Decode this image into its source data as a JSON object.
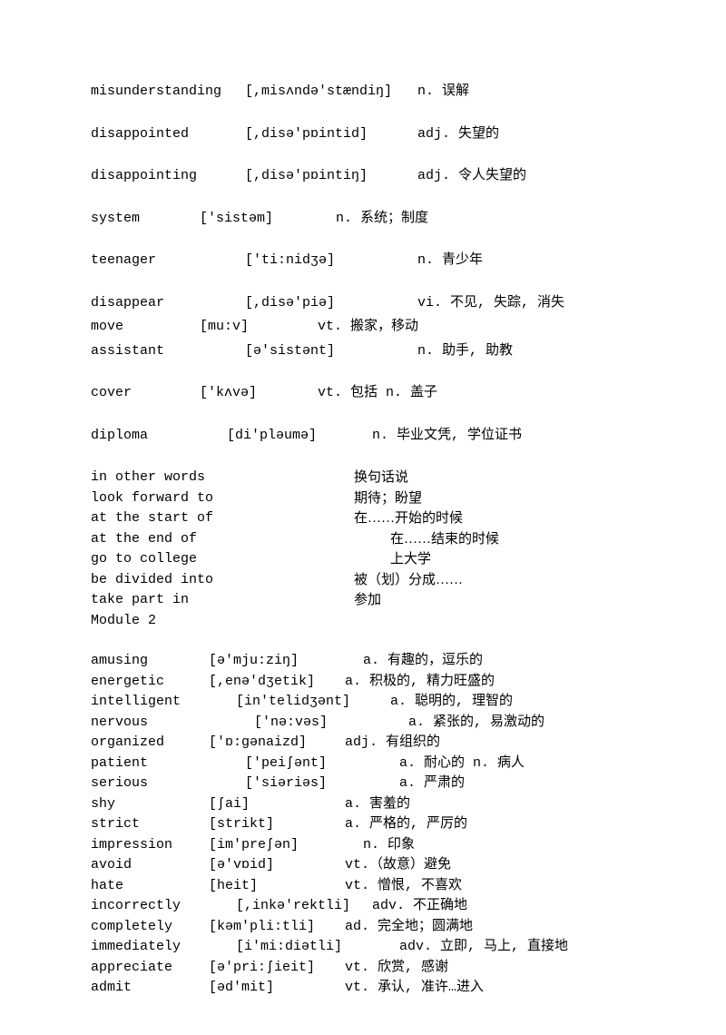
{
  "section1": [
    {
      "word": "misunderstanding",
      "phon": "[,misʌndə'stændiŋ]",
      "def": "n. 误解",
      "wlpad": 0,
      "plpad": 0
    },
    {
      "word": "disappointed",
      "phon": "[,disə'pɒintid]",
      "def": "adj. 失望的",
      "wlpad": 0,
      "plpad": 0
    },
    {
      "word": "disappointing",
      "phon": "[,disə'pɒintiŋ]",
      "def": "adj. 令人失望的",
      "wlpad": 0,
      "plpad": 0
    },
    {
      "word": "system",
      "phon": "['sistəm]",
      "def": "n. 系统；制度",
      "wlpad": 0,
      "plpad": 0,
      "ww": 120,
      "pw": 150
    },
    {
      "word": "teenager",
      "phon": "['ti:nidʒə]",
      "def": "n. 青少年",
      "wlpad": 0,
      "plpad": 0
    },
    {
      "word": "disappear",
      "phon": "[,disə'piə]",
      "def": "vi. 不见, 失踪, 消失",
      "wlpad": 0,
      "plpad": 0,
      "tight": true
    },
    {
      "word": "move",
      "phon": "[mu:v]",
      "def": "vt. 搬家，移动",
      "wlpad": 0,
      "plpad": 0,
      "ww": 120,
      "pw": 130,
      "tight": true
    },
    {
      "word": "assistant",
      "phon": "[ə'sistənt]",
      "def": "n. 助手, 助教",
      "wlpad": 0,
      "plpad": 0
    },
    {
      "word": "cover",
      "phon": "['kʌvə]",
      "def": "vt. 包括 n. 盖子",
      "wlpad": 0,
      "plpad": 0,
      "ww": 120,
      "pw": 130
    },
    {
      "word": "diploma",
      "phon": "[di'pləumə]",
      "def": "n. 毕业文凭, 学位证书",
      "wlpad": 0,
      "plpad": 0,
      "ww": 150,
      "pw": 160
    }
  ],
  "phrases": [
    {
      "phrase": "in other words",
      "def": "换句话说",
      "dlpad": 0
    },
    {
      "phrase": "look forward to",
      "def": "期待；盼望",
      "dlpad": 0
    },
    {
      "phrase": "at the start of",
      "def": "在……开始的时候",
      "dlpad": 0
    },
    {
      "phrase": "at the end of",
      "def": "在……结束的时候",
      "dlpad": 40
    },
    {
      "phrase": "go to college",
      "def": "上大学",
      "dlpad": 40
    },
    {
      "phrase": "be divided into",
      "def": "被（划）分成……",
      "dlpad": 0
    },
    {
      "phrase": "take part in",
      "def": "参加",
      "dlpad": 0
    }
  ],
  "module_title": "Module 2",
  "section2": [
    {
      "word": "amusing",
      "phon": "[ə'mju:ziŋ]",
      "def": "a. 有趣的，逗乐的",
      "wpad": 0,
      "ppad": 0,
      "dpad": 20
    },
    {
      "word": "energetic",
      "phon": "[,enə'dʒetik]",
      "def": "a. 积极的, 精力旺盛的",
      "wpad": 0,
      "ppad": 0,
      "dpad": 0
    },
    {
      "word": "intelligent",
      "phon": "[in'telidʒənt]",
      "def": "a. 聪明的, 理智的",
      "wpad": 0,
      "ppad": 30,
      "dpad": 20
    },
    {
      "word": "nervous",
      "phon": "['nə:vəs]",
      "def": "a. 紧张的, 易激动的",
      "wpad": 0,
      "ppad": 50,
      "dpad": 20
    },
    {
      "word": "organized",
      "phon": "['ɒ:gənaizd]",
      "def": "adj. 有组织的",
      "wpad": 0,
      "ppad": 0,
      "dpad": 0
    },
    {
      "word": "patient",
      "phon": "['peiʃənt]",
      "def": "a. 耐心的 n. 病人",
      "wpad": 0,
      "ppad": 40,
      "dpad": 20
    },
    {
      "word": "serious",
      "phon": "['siəriəs]",
      "def": "a. 严肃的",
      "wpad": 0,
      "ppad": 40,
      "dpad": 20
    },
    {
      "word": "shy",
      "phon": "[ʃai]",
      "def": "a. 害羞的",
      "wpad": 0,
      "ppad": 0,
      "dpad": 0
    },
    {
      "word": "strict",
      "phon": "[strikt]",
      "def": "a. 严格的, 严厉的",
      "wpad": 0,
      "ppad": 0,
      "dpad": 0
    },
    {
      "word": "impression",
      "phon": "[im'preʃən]",
      "def": "n. 印象",
      "wpad": 0,
      "ppad": 0,
      "dpad": 20
    },
    {
      "word": "avoid",
      "phon": "[ə'vɒid]",
      "def": "vt.（故意）避免",
      "wpad": 0,
      "ppad": 0,
      "dpad": 0
    },
    {
      "word": "hate",
      "phon": "[heit]",
      "def": "vt. 憎恨, 不喜欢",
      "wpad": 0,
      "ppad": 0,
      "dpad": 0
    },
    {
      "word": "incorrectly",
      "phon": "[,inkə'rektli]",
      "def": "adv. 不正确地",
      "wpad": 0,
      "ppad": 30,
      "dpad": 0
    },
    {
      "word": "completely",
      "phon": "[kəm'pli:tli]",
      "def": "ad. 完全地；圆满地",
      "wpad": 0,
      "ppad": 0,
      "dpad": 0
    },
    {
      "word": "immediately",
      "phon": "[i'mi:diətli]",
      "def": "adv. 立即, 马上, 直接地",
      "wpad": 0,
      "ppad": 30,
      "dpad": 30
    },
    {
      "word": "appreciate",
      "phon": "[ə'pri:ʃieit]",
      "def": "vt. 欣赏, 感谢",
      "wpad": 0,
      "ppad": 0,
      "dpad": 0
    },
    {
      "word": "admit",
      "phon": "[əd'mit]",
      "def": "vt. 承认, 准许…进入",
      "wpad": 0,
      "ppad": 0,
      "dpad": 0
    }
  ]
}
